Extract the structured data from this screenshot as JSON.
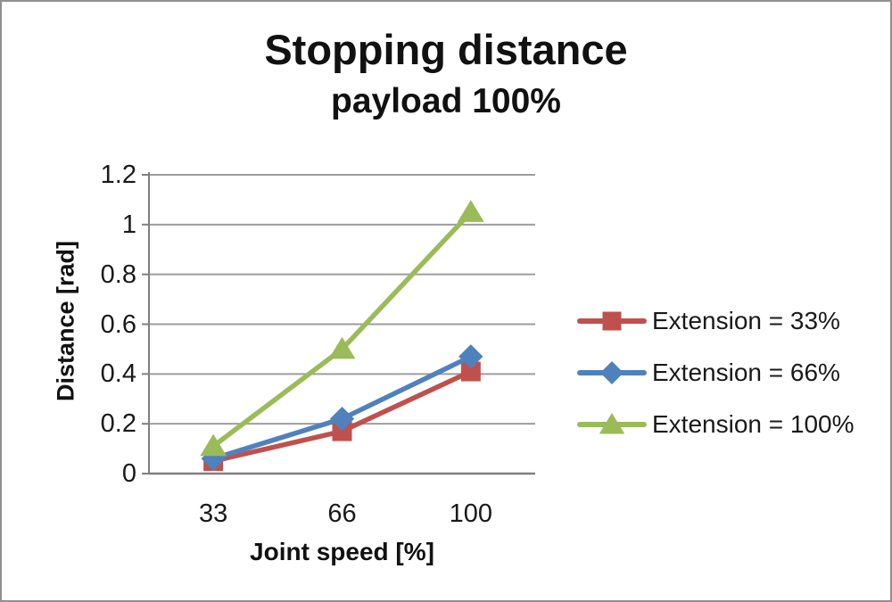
{
  "page": {
    "background": "#ffffff",
    "border_color": "#909090"
  },
  "title": "Stopping distance",
  "subtitle": "payload 100%",
  "chart_data": {
    "type": "line",
    "title": "Stopping distance",
    "subtitle": "payload 100%",
    "xlabel": "Joint speed [%]",
    "ylabel": "Distance [rad]",
    "categories": [
      "33",
      "66",
      "100"
    ],
    "series": [
      {
        "name": "Extension = 33%",
        "marker": "square",
        "color": "#c0504d",
        "values": [
          0.05,
          0.17,
          0.41
        ]
      },
      {
        "name": "Extension = 66%",
        "marker": "diamond",
        "color": "#4f81bd",
        "values": [
          0.06,
          0.22,
          0.47
        ]
      },
      {
        "name": "Extension = 100%",
        "marker": "triangle",
        "color": "#9bbb59",
        "values": [
          0.11,
          0.5,
          1.05
        ]
      }
    ],
    "ylim": [
      0,
      1.2
    ],
    "ytick_step": 0.2,
    "yticks": [
      "0",
      "0.2",
      "0.4",
      "0.6",
      "0.8",
      "1",
      "1.2"
    ],
    "grid": "horizontal",
    "legend_position": "right",
    "gridline_color": "#9d9d9d",
    "axis_color": "#7f7f7f",
    "text_color": "#1a1a1a"
  }
}
